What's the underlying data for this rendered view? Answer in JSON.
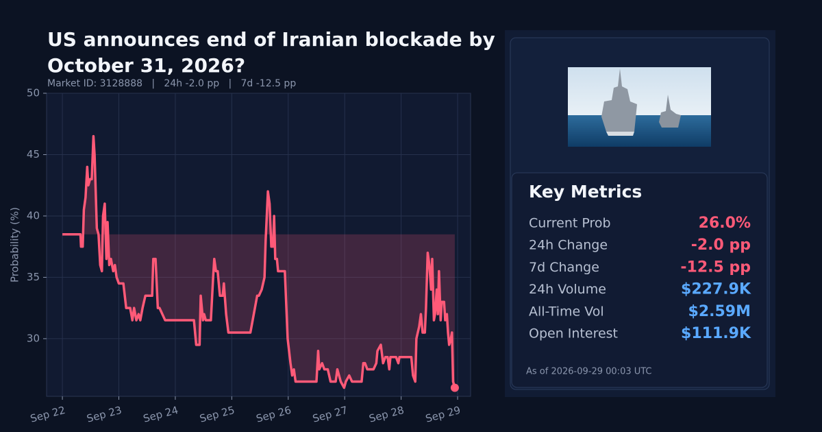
{
  "chart_data": {
    "type": "line",
    "title": "US announces end of Iranian blockade by October 31, 2026?",
    "subtitle": "Market ID: 3128888   |   24h -2.0 pp   |   7d -12.5 pp",
    "y_label": "Probability (%)",
    "color": "#ff5a78",
    "grid": true,
    "xlim": [
      -0.28,
      7.23
    ],
    "ylim": [
      25.3,
      50
    ],
    "yticks": [
      30,
      35,
      40,
      45,
      50
    ],
    "xticks": [
      {
        "value": 0,
        "label": "Sep 22"
      },
      {
        "value": 1,
        "label": "Sep 23"
      },
      {
        "value": 2,
        "label": "Sep 24"
      },
      {
        "value": 3,
        "label": "Sep 25"
      },
      {
        "value": 4,
        "label": "Sep 26"
      },
      {
        "value": 5,
        "label": "Sep 27"
      },
      {
        "value": 6,
        "label": "Sep 28"
      },
      {
        "value": 7,
        "label": "Sep 29"
      }
    ],
    "x": [
      0,
      0.32,
      0.33,
      0.36,
      0.38,
      0.41,
      0.44,
      0.46,
      0.49,
      0.52,
      0.55,
      0.57,
      0.61,
      0.64,
      0.67,
      0.7,
      0.72,
      0.75,
      0.78,
      0.8,
      0.83,
      0.86,
      0.9,
      0.93,
      0.96,
      1.0,
      1.08,
      1.13,
      1.2,
      1.24,
      1.27,
      1.31,
      1.35,
      1.38,
      1.42,
      1.47,
      1.59,
      1.61,
      1.65,
      1.69,
      1.72,
      1.82,
      2.33,
      2.37,
      2.43,
      2.45,
      2.49,
      2.51,
      2.54,
      2.63,
      2.67,
      2.69,
      2.72,
      2.75,
      2.79,
      2.84,
      2.86,
      2.9,
      2.94,
      3.33,
      3.37,
      3.41,
      3.45,
      3.48,
      3.53,
      3.58,
      3.6,
      3.64,
      3.67,
      3.7,
      3.73,
      3.75,
      3.77,
      3.8,
      3.82,
      3.94,
      3.99,
      4.04,
      4.07,
      4.1,
      4.13,
      4.5,
      4.53,
      4.55,
      4.6,
      4.64,
      4.7,
      4.75,
      4.84,
      4.87,
      4.93,
      4.99,
      5.02,
      5.08,
      5.13,
      5.3,
      5.33,
      5.36,
      5.4,
      5.51,
      5.56,
      5.58,
      5.64,
      5.68,
      5.72,
      5.76,
      5.79,
      5.81,
      5.91,
      5.95,
      5.97,
      6.18,
      6.21,
      6.25,
      6.27,
      6.32,
      6.35,
      6.38,
      6.42,
      6.44,
      6.47,
      6.5,
      6.53,
      6.55,
      6.58,
      6.6,
      6.63,
      6.65,
      6.67,
      6.7,
      6.72,
      6.76,
      6.78,
      6.81,
      6.83,
      6.85,
      6.88,
      6.9,
      6.92,
      6.95
    ],
    "values": [
      38.5,
      38.5,
      37.5,
      37.5,
      40.5,
      41.5,
      44,
      42.5,
      43,
      43,
      46.5,
      45,
      39,
      38.5,
      36,
      35.5,
      40,
      41,
      36.5,
      39.5,
      36,
      36.5,
      35.5,
      36,
      35,
      34.5,
      34.5,
      32.5,
      32.5,
      31.5,
      32.5,
      31.5,
      32,
      31.5,
      32.5,
      33.5,
      33.5,
      36.5,
      36.5,
      32.5,
      32.5,
      31.5,
      31.5,
      29.5,
      29.5,
      33.5,
      31.5,
      32,
      31.5,
      31.5,
      35,
      36.5,
      35.5,
      35.5,
      33.5,
      33.5,
      34.5,
      32,
      30.5,
      30.5,
      31.5,
      32.5,
      33.5,
      33.5,
      34,
      35,
      38,
      42,
      41,
      37.5,
      37.5,
      40,
      36.5,
      36.5,
      35.5,
      35.5,
      30,
      28,
      27,
      27.5,
      26.5,
      26.5,
      29,
      27.5,
      28,
      27.5,
      27.5,
      26.5,
      26.5,
      27.5,
      26.5,
      26,
      26.5,
      27,
      26.5,
      26.5,
      28,
      28,
      27.5,
      27.5,
      28,
      29,
      29.5,
      28,
      28.5,
      28.5,
      27.5,
      28.5,
      28.5,
      28,
      28.5,
      28.5,
      27,
      26.5,
      30,
      31,
      32,
      30.5,
      30.5,
      32.5,
      37,
      36,
      34,
      36.5,
      31.5,
      32,
      34,
      32,
      35.5,
      31.5,
      33,
      33,
      31.5,
      32,
      30.5,
      29.5,
      30,
      30.5,
      26.5,
      26
    ]
  },
  "metrics": {
    "title": "Key Metrics",
    "rows": [
      {
        "label": "Current Prob",
        "value": "26.0%",
        "color": "#ff5a78"
      },
      {
        "label": "24h Change",
        "value": "-2.0 pp",
        "color": "#ff5a78"
      },
      {
        "label": "7d Change",
        "value": "-12.5 pp",
        "color": "#ff5a78"
      },
      {
        "label": "24h Volume",
        "value": "$227.9K",
        "color": "#5aa9ff"
      },
      {
        "label": "All-Time Vol",
        "value": "$2.59M",
        "color": "#5aa9ff"
      },
      {
        "label": "Open Interest",
        "value": "$111.9K",
        "color": "#5aa9ff"
      }
    ],
    "as_of": "As of 2026-09-29 00:03 UTC"
  }
}
